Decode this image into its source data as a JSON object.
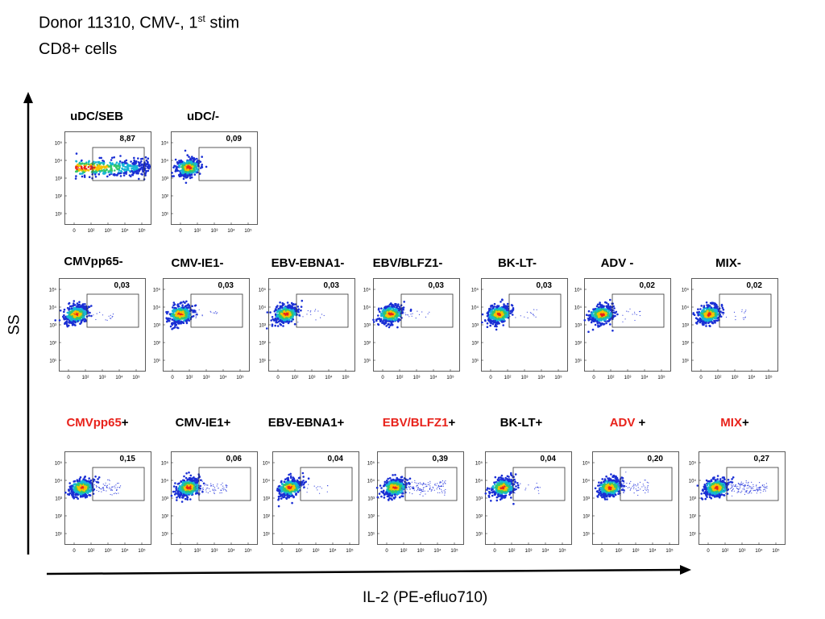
{
  "header": {
    "title_main": "Donor 11310, CMV-, 1",
    "title_sup": "st",
    "title_tail": " stim",
    "subtitle": "CD8+ cells"
  },
  "axes": {
    "y_label": "SS",
    "x_label": "IL-2 (PE-efluo710)"
  },
  "tick_labels": {
    "y": [
      "10⁵",
      "10⁴",
      "10³",
      "10²",
      "10¹"
    ],
    "x": [
      "0",
      "10²",
      "10³",
      "10⁴",
      "10⁵"
    ]
  },
  "chart_data": [
    {
      "type": "scatter",
      "label_parts": [
        {
          "text": "uDC/SEB",
          "color": "#000000"
        }
      ],
      "gate_value": "8,87",
      "spread": "wide"
    },
    {
      "type": "scatter",
      "label_parts": [
        {
          "text": "uDC/-",
          "color": "#000000"
        }
      ],
      "gate_value": "0,09",
      "spread": "none"
    },
    {
      "type": "scatter",
      "label_parts": [
        {
          "text": "CMVpp65-",
          "color": "#000000"
        }
      ],
      "gate_value": "0,03",
      "spread": "low"
    },
    {
      "type": "scatter",
      "label_parts": [
        {
          "text": "CMV-IE1-",
          "color": "#000000"
        }
      ],
      "gate_value": "0,03",
      "spread": "low"
    },
    {
      "type": "scatter",
      "label_parts": [
        {
          "text": "EBV-EBNA1-",
          "color": "#000000"
        }
      ],
      "gate_value": "0,03",
      "spread": "low"
    },
    {
      "type": "scatter",
      "label_parts": [
        {
          "text": "EBV/BLFZ1-",
          "color": "#000000"
        }
      ],
      "gate_value": "0,03",
      "spread": "low"
    },
    {
      "type": "scatter",
      "label_parts": [
        {
          "text": "BK-LT-",
          "color": "#000000"
        }
      ],
      "gate_value": "0,03",
      "spread": "low"
    },
    {
      "type": "scatter",
      "label_parts": [
        {
          "text": "ADV -",
          "color": "#000000"
        }
      ],
      "gate_value": "0,02",
      "spread": "low"
    },
    {
      "type": "scatter",
      "label_parts": [
        {
          "text": "MIX-",
          "color": "#000000"
        }
      ],
      "gate_value": "0,02",
      "spread": "low"
    },
    {
      "type": "scatter",
      "label_parts": [
        {
          "text": "CMVpp65",
          "color": "#e8221b"
        },
        {
          "text": "+",
          "color": "#000000"
        }
      ],
      "gate_value": "0,15",
      "spread": "mid"
    },
    {
      "type": "scatter",
      "label_parts": [
        {
          "text": "CMV-IE1+",
          "color": "#000000"
        }
      ],
      "gate_value": "0,06",
      "spread": "mid"
    },
    {
      "type": "scatter",
      "label_parts": [
        {
          "text": "EBV-EBNA1+",
          "color": "#000000"
        }
      ],
      "gate_value": "0,04",
      "spread": "low"
    },
    {
      "type": "scatter",
      "label_parts": [
        {
          "text": "EBV/BLFZ1",
          "color": "#e8221b"
        },
        {
          "text": "+",
          "color": "#000000"
        }
      ],
      "gate_value": "0,39",
      "spread": "high"
    },
    {
      "type": "scatter",
      "label_parts": [
        {
          "text": "BK-LT+",
          "color": "#000000"
        }
      ],
      "gate_value": "0,04",
      "spread": "low"
    },
    {
      "type": "scatter",
      "label_parts": [
        {
          "text": "ADV",
          "color": "#e8221b"
        },
        {
          "text": " +",
          "color": "#000000"
        }
      ],
      "gate_value": "0,20",
      "spread": "mid"
    },
    {
      "type": "scatter",
      "label_parts": [
        {
          "text": "MIX",
          "color": "#e8221b"
        },
        {
          "text": "+",
          "color": "#000000"
        }
      ],
      "gate_value": "0,27",
      "spread": "high"
    }
  ]
}
